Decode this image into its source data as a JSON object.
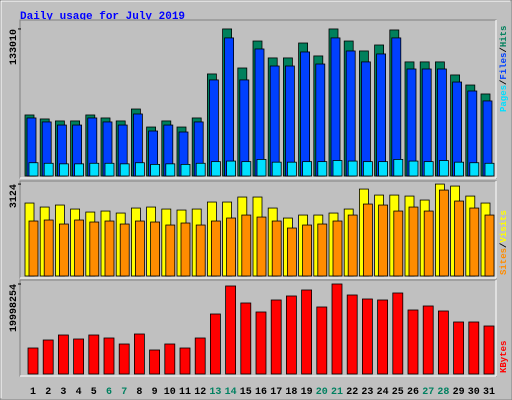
{
  "chart_data": {
    "type": "bar",
    "title": "Daily usage for July 2019",
    "categories": [
      "1",
      "2",
      "3",
      "4",
      "5",
      "6",
      "7",
      "8",
      "9",
      "10",
      "11",
      "12",
      "13",
      "14",
      "15",
      "16",
      "17",
      "18",
      "19",
      "20",
      "21",
      "22",
      "23",
      "24",
      "25",
      "26",
      "27",
      "28",
      "29",
      "30",
      "31"
    ],
    "category_colors": [
      "#000000",
      "#000000",
      "#000000",
      "#000000",
      "#000000",
      "#008060",
      "#008060",
      "#000000",
      "#000000",
      "#000000",
      "#000000",
      "#000000",
      "#008060",
      "#008060",
      "#000000",
      "#000000",
      "#000000",
      "#000000",
      "#000000",
      "#008060",
      "#008060",
      "#000000",
      "#000000",
      "#000000",
      "#000000",
      "#000000",
      "#008060",
      "#008060",
      "#000000",
      "#000000",
      "#000000"
    ],
    "legend_separator": "/",
    "panels": [
      {
        "ylim": [
          0,
          139300
        ],
        "yticks": [
          133010
        ],
        "series": [
          {
            "name": "Hits",
            "color": "#00805c",
            "values": [
              55200,
              51600,
              49800,
              49800,
              55200,
              52500,
              49800,
              60600,
              44300,
              49800,
              44300,
              52500,
              92300,
              133010,
              97700,
              122100,
              106800,
              106800,
              120300,
              108600,
              133010,
              122100,
              113100,
              118500,
              132100,
              103200,
              103200,
              103200,
              91400,
              82300,
              74200
            ]
          },
          {
            "name": "Files",
            "color": "#0040ff",
            "values": [
              52500,
              48900,
              46100,
              46100,
              52500,
              48900,
              46100,
              56100,
              40700,
              46100,
              39800,
              48900,
              86900,
              124900,
              86900,
              114900,
              99500,
              99500,
              112200,
              101300,
              124900,
              113100,
              103200,
              110400,
              124900,
              96800,
              96800,
              96800,
              85000,
              76900,
              67900
            ]
          },
          {
            "name": "Pages",
            "color": "#00e0ff",
            "values": [
              12000,
              11500,
              11000,
              11000,
              11500,
              11500,
              11000,
              12000,
              10500,
              11000,
              10500,
              11500,
              13000,
              13500,
              13000,
              15000,
              12500,
              12500,
              13000,
              13000,
              14000,
              13500,
              13000,
              13000,
              15000,
              13500,
              13000,
              14000,
              12500,
              12000,
              11500
            ]
          }
        ]
      },
      {
        "ylim": [
          0,
          3160
        ],
        "yticks": [
          3124
        ],
        "series": [
          {
            "name": "Visits",
            "color": "#ffff00",
            "values": [
              2479,
              2343,
              2411,
              2275,
              2173,
              2207,
              2139,
              2309,
              2343,
              2275,
              2241,
              2275,
              2513,
              2513,
              2683,
              2683,
              2309,
              1969,
              2071,
              2071,
              2139,
              2275,
              2954,
              2750,
              2750,
              2716,
              2581,
              3124,
              3056,
              2716,
              2479
            ]
          },
          {
            "name": "Sites",
            "color": "#ff8c00",
            "values": [
              1868,
              1902,
              1766,
              1902,
              1834,
              1868,
              1766,
              1868,
              1834,
              1732,
              1800,
              1732,
              1868,
              1970,
              2071,
              2003,
              1868,
              1630,
              1732,
              1766,
              1868,
              2071,
              2445,
              2411,
              2207,
              2343,
              2207,
              2920,
              2547,
              2309,
              2071
            ]
          }
        ]
      },
      {
        "ylim": [
          0,
          20440000
        ],
        "yticks": [
          19998254
        ],
        "series": [
          {
            "name": "KBytes",
            "color": "#ff0000",
            "values": [
              5777000,
              7555000,
              8666000,
              7777000,
              8666000,
              8000000,
              6666000,
              8888000,
              5333000,
              6666000,
              5777000,
              8000000,
              13332000,
              19554000,
              15777000,
              13777000,
              16443000,
              17332000,
              18665000,
              14888000,
              19998254,
              17554000,
              16665000,
              16443000,
              17998000,
              14221000,
              15110000,
              13999000,
              11555000,
              11555000,
              10666000
            ]
          }
        ]
      }
    ]
  }
}
